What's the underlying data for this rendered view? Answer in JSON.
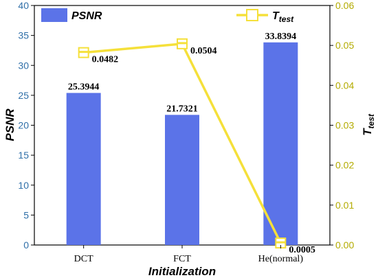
{
  "chart_data": {
    "type": "bar+line",
    "categories": [
      "DCT",
      "FCT",
      "He(normal)"
    ],
    "bar_series": {
      "name": "PSNR",
      "values": [
        25.3944,
        21.7321,
        33.8394
      ],
      "labels": [
        "25.3944",
        "21.7321",
        "33.8394"
      ],
      "color": "#5b73e8"
    },
    "line_series": {
      "name": "T",
      "name_sub": "test",
      "values": [
        0.0482,
        0.0504,
        0.0005
      ],
      "labels": [
        "0.0482",
        "0.0504",
        "0.0005"
      ],
      "color": "#f5e03a"
    },
    "left_axis": {
      "label": "PSNR",
      "ylim": [
        0,
        40
      ],
      "ticks": [
        "0",
        "5",
        "10",
        "15",
        "20",
        "25",
        "30",
        "35",
        "40"
      ]
    },
    "right_axis": {
      "label": "T",
      "label_sub": "test",
      "ylim": [
        0,
        0.06
      ],
      "ticks": [
        "0.00",
        "0.01",
        "0.02",
        "0.03",
        "0.04",
        "0.05",
        "0.06"
      ]
    },
    "xlabel": "Initialization",
    "grid": false,
    "legend": [
      "top-left (PSNR)",
      "top-right (T_test)"
    ]
  }
}
